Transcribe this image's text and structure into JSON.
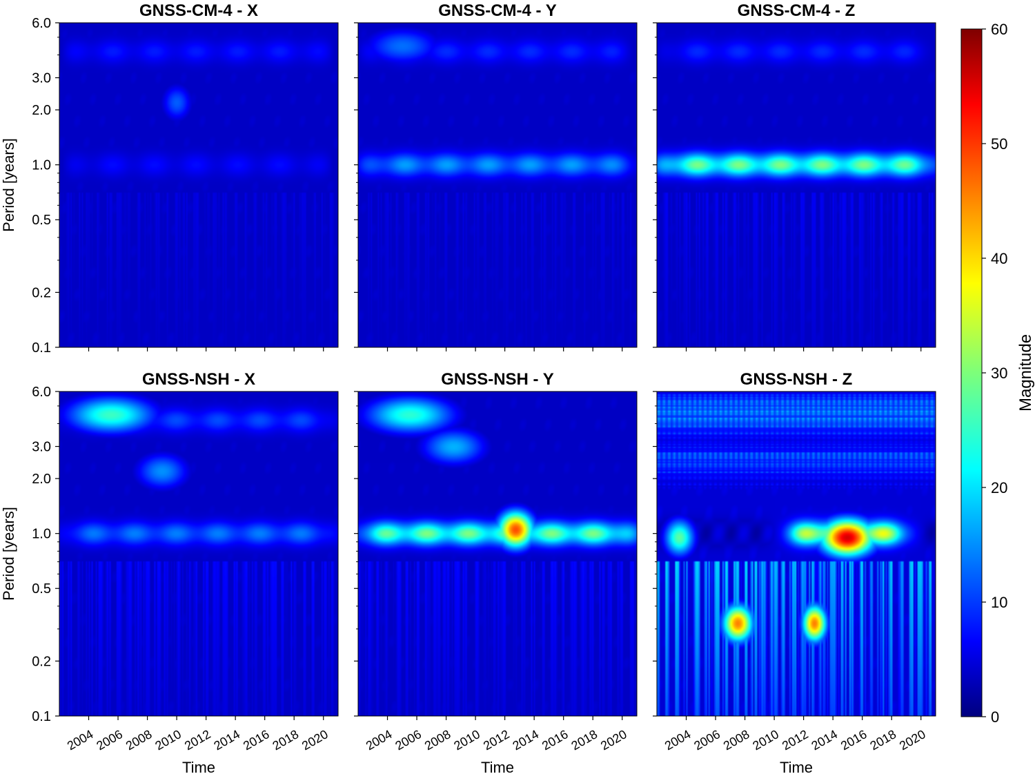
{
  "figure": {
    "colorbar": {
      "label": "Magnitude",
      "min": 0,
      "max": 60,
      "ticks": [
        0,
        10,
        20,
        30,
        40,
        50,
        60
      ],
      "colormap": "jet"
    },
    "xlabel": "Time",
    "ylabel": "Period [years]"
  },
  "chart_data": [
    {
      "type": "heatmap",
      "title": "GNSS-CM-4 - X",
      "xlabel": "",
      "ylabel": "Period [years]",
      "xlim": [
        2002.0,
        2021.0
      ],
      "ylim": [
        0.1,
        6.0
      ],
      "yscale": "log",
      "xticks": [
        "2004",
        "2006",
        "2008",
        "2010",
        "2012",
        "2014",
        "2016",
        "2018",
        "2020"
      ],
      "yticks": [
        "0.1",
        "0.2",
        "0.5",
        "1.0",
        "2.0",
        "3.0",
        "6.0"
      ],
      "background": 4,
      "features": [
        {
          "period": 4.2,
          "t_start": 2002,
          "t_end": 2021,
          "magnitude": 9,
          "kind": "band"
        },
        {
          "period": 2.2,
          "t_start": 2009,
          "t_end": 2011,
          "magnitude": 13,
          "kind": "blob"
        },
        {
          "period": 1.0,
          "t_start": 2002,
          "t_end": 2021,
          "magnitude": 8,
          "kind": "band"
        },
        {
          "period": 0.3,
          "t_start": 2002,
          "t_end": 2021,
          "magnitude": 4,
          "kind": "spikes"
        }
      ]
    },
    {
      "type": "heatmap",
      "title": "GNSS-CM-4 - Y",
      "xlabel": "",
      "ylabel": "",
      "xlim": [
        2002.0,
        2021.0
      ],
      "ylim": [
        0.1,
        6.0
      ],
      "yscale": "log",
      "xticks": [
        "2004",
        "2006",
        "2008",
        "2010",
        "2012",
        "2014",
        "2016",
        "2018",
        "2020"
      ],
      "yticks": [
        "0.1",
        "0.2",
        "0.5",
        "1.0",
        "2.0",
        "3.0",
        "6.0"
      ],
      "background": 4,
      "features": [
        {
          "period": 4.5,
          "t_start": 2002,
          "t_end": 2008,
          "magnitude": 14,
          "kind": "blob"
        },
        {
          "period": 4.2,
          "t_start": 2002,
          "t_end": 2021,
          "magnitude": 10,
          "kind": "band"
        },
        {
          "period": 1.0,
          "t_start": 2002,
          "t_end": 2021,
          "magnitude": 17,
          "kind": "band"
        },
        {
          "period": 0.3,
          "t_start": 2002,
          "t_end": 2021,
          "magnitude": 4,
          "kind": "spikes"
        }
      ]
    },
    {
      "type": "heatmap",
      "title": "GNSS-CM-4 - Z",
      "xlabel": "",
      "ylabel": "",
      "xlim": [
        2002.0,
        2021.0
      ],
      "ylim": [
        0.1,
        6.0
      ],
      "yscale": "log",
      "xticks": [
        "2004",
        "2006",
        "2008",
        "2010",
        "2012",
        "2014",
        "2016",
        "2018",
        "2020"
      ],
      "yticks": [
        "0.1",
        "0.2",
        "0.5",
        "1.0",
        "2.0",
        "3.0",
        "6.0"
      ],
      "background": 4,
      "features": [
        {
          "period": 4.2,
          "t_start": 2002,
          "t_end": 2021,
          "magnitude": 10,
          "kind": "band"
        },
        {
          "period": 1.0,
          "t_start": 2002,
          "t_end": 2021,
          "magnitude": 30,
          "kind": "band"
        },
        {
          "period": 0.3,
          "t_start": 2002,
          "t_end": 2021,
          "magnitude": 5,
          "kind": "spikes"
        }
      ]
    },
    {
      "type": "heatmap",
      "title": "GNSS-NSH - X",
      "xlabel": "Time",
      "ylabel": "Period [years]",
      "xlim": [
        2002.0,
        2021.0
      ],
      "ylim": [
        0.1,
        6.0
      ],
      "yscale": "log",
      "xticks": [
        "2004",
        "2006",
        "2008",
        "2010",
        "2012",
        "2014",
        "2016",
        "2018",
        "2020"
      ],
      "yticks": [
        "0.1",
        "0.2",
        "0.5",
        "1.0",
        "2.0",
        "3.0",
        "6.0"
      ],
      "background": 4,
      "features": [
        {
          "period": 4.5,
          "t_start": 2002,
          "t_end": 2009,
          "magnitude": 26,
          "kind": "blob"
        },
        {
          "period": 4.2,
          "t_start": 2002,
          "t_end": 2021,
          "magnitude": 12,
          "kind": "band"
        },
        {
          "period": 2.2,
          "t_start": 2007,
          "t_end": 2011,
          "magnitude": 16,
          "kind": "blob"
        },
        {
          "period": 1.0,
          "t_start": 2002,
          "t_end": 2021,
          "magnitude": 15,
          "kind": "band"
        },
        {
          "period": 0.3,
          "t_start": 2002,
          "t_end": 2021,
          "magnitude": 6,
          "kind": "spikes"
        }
      ]
    },
    {
      "type": "heatmap",
      "title": "GNSS-NSH - Y",
      "xlabel": "Time",
      "ylabel": "",
      "xlim": [
        2002.0,
        2021.0
      ],
      "ylim": [
        0.1,
        6.0
      ],
      "yscale": "log",
      "xticks": [
        "2004",
        "2006",
        "2008",
        "2010",
        "2012",
        "2014",
        "2016",
        "2018",
        "2020"
      ],
      "yticks": [
        "0.1",
        "0.2",
        "0.5",
        "1.0",
        "2.0",
        "3.0",
        "6.0"
      ],
      "background": 4,
      "features": [
        {
          "period": 4.5,
          "t_start": 2002,
          "t_end": 2009,
          "magnitude": 25,
          "kind": "blob"
        },
        {
          "period": 3.0,
          "t_start": 2006,
          "t_end": 2011,
          "magnitude": 18,
          "kind": "blob"
        },
        {
          "period": 1.0,
          "t_start": 2002,
          "t_end": 2021,
          "magnitude": 30,
          "kind": "band"
        },
        {
          "period": 1.05,
          "t_start": 2011.5,
          "t_end": 2014,
          "magnitude": 48,
          "kind": "blob"
        },
        {
          "period": 0.3,
          "t_start": 2002,
          "t_end": 2021,
          "magnitude": 6,
          "kind": "spikes"
        }
      ]
    },
    {
      "type": "heatmap",
      "title": "GNSS-NSH - Z",
      "xlabel": "Time",
      "ylabel": "",
      "xlim": [
        2002.0,
        2021.0
      ],
      "ylim": [
        0.1,
        6.0
      ],
      "yscale": "log",
      "xticks": [
        "2004",
        "2006",
        "2008",
        "2010",
        "2012",
        "2014",
        "2016",
        "2018",
        "2020"
      ],
      "yticks": [
        "0.1",
        "0.2",
        "0.5",
        "1.0",
        "2.0",
        "3.0",
        "6.0"
      ],
      "background": 5,
      "features": [
        {
          "period": 4.5,
          "t_start": 2002,
          "t_end": 2021,
          "magnitude": 20,
          "kind": "noise"
        },
        {
          "period": 2.5,
          "t_start": 2002,
          "t_end": 2021,
          "magnitude": 16,
          "kind": "noise"
        },
        {
          "period": 1.0,
          "t_start": 2011,
          "t_end": 2019,
          "magnitude": 40,
          "kind": "band"
        },
        {
          "period": 0.95,
          "t_start": 2013,
          "t_end": 2017,
          "magnitude": 55,
          "kind": "blob"
        },
        {
          "period": 0.95,
          "t_start": 2002.5,
          "t_end": 2004.5,
          "magnitude": 28,
          "kind": "blob"
        },
        {
          "period": 0.32,
          "t_start": 2006.5,
          "t_end": 2008.5,
          "magnitude": 45,
          "kind": "blob"
        },
        {
          "period": 0.32,
          "t_start": 2012,
          "t_end": 2013.5,
          "magnitude": 45,
          "kind": "blob"
        },
        {
          "period": 0.3,
          "t_start": 2002,
          "t_end": 2021,
          "magnitude": 18,
          "kind": "spikes"
        }
      ]
    }
  ]
}
